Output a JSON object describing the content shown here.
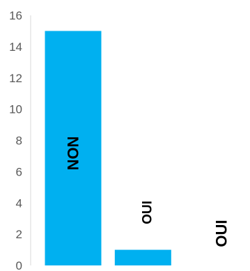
{
  "chart_data": {
    "type": "bar",
    "categories": [
      "NON",
      "OUI",
      "OUI"
    ],
    "values": [
      15,
      1,
      0
    ],
    "data_labels": [
      "NON",
      "OUI",
      "OUI"
    ],
    "ylim": [
      0,
      16
    ],
    "yticks": [
      0,
      2,
      4,
      6,
      8,
      10,
      12,
      14,
      16
    ],
    "ytick_labels": [
      "0",
      "2",
      "4",
      "6",
      "8",
      "10",
      "12",
      "14",
      "16"
    ],
    "grid": false,
    "legend": "none",
    "bar_color": "#00B0F0",
    "axis_color": "#D9D9D9",
    "tick_color": "#595959"
  }
}
